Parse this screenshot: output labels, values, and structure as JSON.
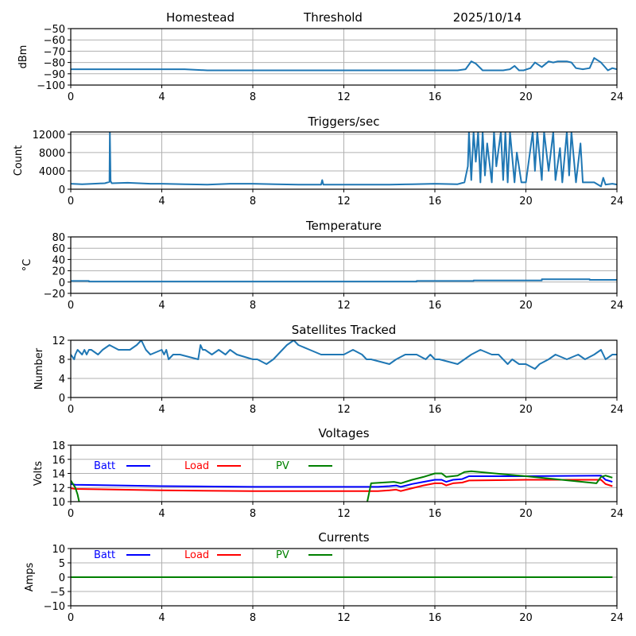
{
  "header": {
    "site": "Homestead",
    "mode": "Threshold",
    "date": "2025/10/14"
  },
  "chart_data": [
    {
      "id": "signal",
      "type": "line",
      "title": "",
      "xlabel": "",
      "ylabel": "dBm",
      "xlim": [
        0,
        24
      ],
      "ylim": [
        -100,
        -50
      ],
      "xticks": [
        "0",
        "4",
        "8",
        "12",
        "16",
        "20",
        "24"
      ],
      "yticks": [
        "−50",
        "−60",
        "−70",
        "−80",
        "−90",
        "−100"
      ],
      "ytick_values": [
        -50,
        -60,
        -70,
        -80,
        -90,
        -100
      ],
      "grid": true,
      "series": [
        {
          "name": "signal",
          "color": "#1f77b4",
          "x": [
            0,
            1,
            2,
            3,
            4,
            5,
            6,
            7,
            8,
            9,
            10,
            11,
            12,
            13,
            14,
            15,
            16,
            17,
            17.35,
            17.6,
            17.8,
            18.1,
            18.5,
            19.0,
            19.3,
            19.5,
            19.7,
            19.9,
            20.2,
            20.4,
            20.7,
            21.0,
            21.2,
            21.4,
            21.8,
            22.0,
            22.2,
            22.5,
            22.8,
            23.0,
            23.3,
            23.6,
            23.8,
            24.0
          ],
          "y": [
            -86,
            -86,
            -86,
            -86,
            -86,
            -86,
            -87,
            -87,
            -87,
            -87,
            -87,
            -87,
            -87,
            -87,
            -87,
            -87,
            -87,
            -87,
            -86,
            -79,
            -81,
            -87,
            -87,
            -87,
            -86,
            -83,
            -87,
            -87,
            -85,
            -80,
            -84,
            -79,
            -80,
            -79,
            -79,
            -80,
            -85,
            -86,
            -85,
            -76,
            -80,
            -87,
            -85,
            -86
          ]
        }
      ]
    },
    {
      "id": "triggers",
      "type": "line",
      "title": "Triggers/sec",
      "xlabel": "",
      "ylabel": "Count",
      "xlim": [
        0,
        24
      ],
      "ylim": [
        0,
        12500
      ],
      "xticks": [
        "0",
        "4",
        "8",
        "12",
        "16",
        "20",
        "24"
      ],
      "yticks": [
        "12000",
        "8000",
        "4000",
        "0"
      ],
      "ytick_values": [
        12000,
        8000,
        4000,
        0
      ],
      "grid": true,
      "series": [
        {
          "name": "triggers",
          "color": "#1f77b4",
          "x": [
            0,
            0.5,
            1.0,
            1.5,
            1.7,
            1.72,
            1.75,
            1.8,
            2.5,
            3.0,
            3.5,
            4.0,
            5.0,
            6.0,
            7.0,
            8.0,
            9.0,
            10.0,
            11.0,
            11.05,
            11.1,
            12.0,
            13.0,
            14.0,
            15.0,
            16.0,
            17.0,
            17.3,
            17.45,
            17.5,
            17.6,
            17.7,
            17.8,
            17.9,
            18.0,
            18.1,
            18.2,
            18.3,
            18.5,
            18.6,
            18.7,
            18.9,
            19.0,
            19.1,
            19.2,
            19.3,
            19.5,
            19.6,
            19.8,
            20.0,
            20.3,
            20.4,
            20.5,
            20.7,
            20.8,
            21.0,
            21.2,
            21.3,
            21.5,
            21.6,
            21.8,
            21.9,
            22.0,
            22.2,
            22.4,
            22.5,
            22.7,
            23.0,
            23.3,
            23.4,
            23.5,
            23.8,
            24.0
          ],
          "y": [
            1200,
            1100,
            1200,
            1300,
            1600,
            12500,
            1800,
            1300,
            1400,
            1300,
            1200,
            1200,
            1100,
            1000,
            1200,
            1200,
            1100,
            1000,
            1000,
            2000,
            1000,
            1000,
            1000,
            1000,
            1100,
            1200,
            1100,
            1500,
            5000,
            12500,
            2000,
            12500,
            6000,
            12500,
            1500,
            12500,
            3000,
            10000,
            1500,
            12500,
            5000,
            12500,
            2000,
            12500,
            1500,
            12500,
            1500,
            8000,
            1500,
            1500,
            12500,
            4000,
            12500,
            2000,
            12500,
            4000,
            12500,
            2000,
            9000,
            1500,
            12500,
            3000,
            12500,
            1500,
            10000,
            1500,
            1500,
            1500,
            600,
            2500,
            1000,
            1200,
            1000
          ]
        }
      ]
    },
    {
      "id": "temperature",
      "type": "line",
      "title": "Temperature",
      "xlabel": "",
      "ylabel": "°C",
      "xlim": [
        0,
        24
      ],
      "ylim": [
        -20,
        80
      ],
      "xticks": [
        "0",
        "4",
        "8",
        "12",
        "16",
        "20",
        "24"
      ],
      "yticks": [
        "80",
        "60",
        "40",
        "20",
        "0",
        "−20"
      ],
      "ytick_values": [
        80,
        60,
        40,
        20,
        0,
        -20
      ],
      "grid": true,
      "series": [
        {
          "name": "temperature",
          "color": "#1f77b4",
          "x": [
            0,
            0.8,
            0.8,
            15.2,
            15.2,
            17.7,
            17.7,
            20.7,
            20.7,
            22.8,
            22.8,
            24.0
          ],
          "y": [
            2,
            2,
            1,
            1,
            2,
            2,
            3,
            3,
            5,
            5,
            4,
            4
          ]
        }
      ]
    },
    {
      "id": "satellites",
      "type": "line",
      "title": "Satellites Tracked",
      "xlabel": "",
      "ylabel": "Number",
      "xlim": [
        0,
        24
      ],
      "ylim": [
        0,
        12
      ],
      "xticks": [
        "0",
        "4",
        "8",
        "12",
        "16",
        "20",
        "24"
      ],
      "yticks": [
        "12",
        "8",
        "4",
        "0"
      ],
      "ytick_values": [
        12,
        8,
        4,
        0
      ],
      "grid": true,
      "series": [
        {
          "name": "satellites",
          "color": "#1f77b4",
          "x": [
            0,
            0.15,
            0.2,
            0.3,
            0.5,
            0.6,
            0.7,
            0.8,
            0.9,
            1.2,
            1.4,
            1.7,
            2.1,
            2.6,
            2.9,
            3.1,
            3.3,
            3.5,
            4.0,
            4.1,
            4.2,
            4.3,
            4.5,
            4.8,
            5.6,
            5.7,
            5.8,
            5.9,
            6.2,
            6.5,
            6.8,
            7.0,
            7.3,
            8.0,
            8.2,
            8.6,
            8.9,
            9.3,
            9.5,
            9.8,
            10.0,
            10.5,
            11.0,
            11.5,
            12.0,
            12.4,
            12.8,
            13.0,
            13.2,
            14.0,
            14.3,
            14.7,
            15.2,
            15.6,
            15.8,
            16.0,
            16.2,
            17.0,
            17.3,
            17.6,
            18.0,
            18.5,
            18.8,
            19.2,
            19.4,
            19.7,
            20.0,
            20.4,
            20.6,
            21.0,
            21.3,
            21.8,
            22.3,
            22.6,
            23.0,
            23.3,
            23.5,
            23.8,
            24.0
          ],
          "y": [
            9,
            8,
            9,
            10,
            9,
            10,
            9,
            10,
            10,
            9,
            10,
            11,
            10,
            10,
            11,
            12,
            10,
            9,
            10,
            9,
            10,
            8,
            9,
            9,
            8,
            11,
            10,
            10,
            9,
            10,
            9,
            10,
            9,
            8,
            8,
            7,
            8,
            10,
            11,
            12,
            11,
            10,
            9,
            9,
            9,
            10,
            9,
            8,
            8,
            7,
            8,
            9,
            9,
            8,
            9,
            8,
            8,
            7,
            8,
            9,
            10,
            9,
            9,
            7,
            8,
            7,
            7,
            6,
            7,
            8,
            9,
            8,
            9,
            8,
            9,
            10,
            8,
            9,
            9
          ]
        }
      ]
    },
    {
      "id": "voltages",
      "type": "line",
      "title": "Voltages",
      "xlabel": "",
      "ylabel": "Volts",
      "xlim": [
        0,
        24
      ],
      "ylim": [
        10,
        18
      ],
      "xticks": [
        "0",
        "4",
        "8",
        "12",
        "16",
        "20",
        "24"
      ],
      "yticks": [
        "18",
        "16",
        "14",
        "12",
        "10"
      ],
      "ytick_values": [
        18,
        16,
        14,
        12,
        10
      ],
      "grid": true,
      "legend": {
        "placement": "top-left",
        "entries": [
          "Batt",
          "Load",
          "PV"
        ]
      },
      "series": [
        {
          "name": "Batt",
          "color": "#0000ff",
          "x": [
            0,
            0.2,
            4,
            8,
            12,
            13.5,
            14,
            14.3,
            14.5,
            15,
            15.5,
            16,
            16.3,
            16.5,
            16.8,
            17.2,
            17.5,
            20,
            23.3,
            23.5,
            23.8
          ],
          "y": [
            12.5,
            12.4,
            12.2,
            12.1,
            12.1,
            12.1,
            12.2,
            12.3,
            12.1,
            12.5,
            12.8,
            13.1,
            13.1,
            12.8,
            13.1,
            13.2,
            13.6,
            13.6,
            13.7,
            13.1,
            12.8
          ]
        },
        {
          "name": "Load",
          "color": "#ff0000",
          "x": [
            0,
            0.2,
            4,
            8,
            12,
            13.5,
            14,
            14.3,
            14.5,
            15,
            15.5,
            16,
            16.3,
            16.5,
            16.8,
            17.2,
            17.5,
            20,
            23.3,
            23.5,
            23.8
          ],
          "y": [
            11.9,
            11.8,
            11.6,
            11.5,
            11.5,
            11.5,
            11.6,
            11.7,
            11.5,
            11.9,
            12.3,
            12.6,
            12.6,
            12.3,
            12.6,
            12.7,
            13.0,
            13.1,
            13.1,
            12.5,
            12.2
          ]
        },
        {
          "name": "PV",
          "color": "#008000",
          "x": [
            0,
            0.2,
            0.3,
            0.4,
            13.0,
            13.2,
            14.2,
            14.5,
            15,
            15.5,
            16,
            16.3,
            16.5,
            17.0,
            17.3,
            17.6,
            20,
            23.1,
            23.3,
            23.5,
            23.8
          ],
          "y": [
            13.0,
            12.0,
            11.0,
            9.5,
            9.5,
            12.6,
            12.8,
            12.6,
            13.1,
            13.5,
            14.0,
            14.0,
            13.5,
            13.7,
            14.2,
            14.3,
            13.6,
            12.6,
            13.5,
            13.7,
            13.4
          ]
        }
      ]
    },
    {
      "id": "currents",
      "type": "line",
      "title": "Currents",
      "xlabel": "",
      "ylabel": "Amps",
      "xlim": [
        0,
        24
      ],
      "ylim": [
        -10,
        10
      ],
      "xticks": [
        "0",
        "4",
        "8",
        "12",
        "16",
        "20",
        "24"
      ],
      "yticks": [
        "10",
        "5",
        "0",
        "−5",
        "−10"
      ],
      "ytick_values": [
        10,
        5,
        0,
        -5,
        -10
      ],
      "grid": true,
      "legend": {
        "placement": "top-left",
        "entries": [
          "Batt",
          "Load",
          "PV"
        ]
      },
      "series": [
        {
          "name": "Batt",
          "color": "#0000ff",
          "x": [
            0,
            23.8
          ],
          "y": [
            0,
            0
          ]
        },
        {
          "name": "Load",
          "color": "#ff0000",
          "x": [
            0,
            23.8
          ],
          "y": [
            0,
            0
          ]
        },
        {
          "name": "PV",
          "color": "#008000",
          "x": [
            0,
            23.8
          ],
          "y": [
            0,
            0
          ]
        }
      ]
    }
  ]
}
